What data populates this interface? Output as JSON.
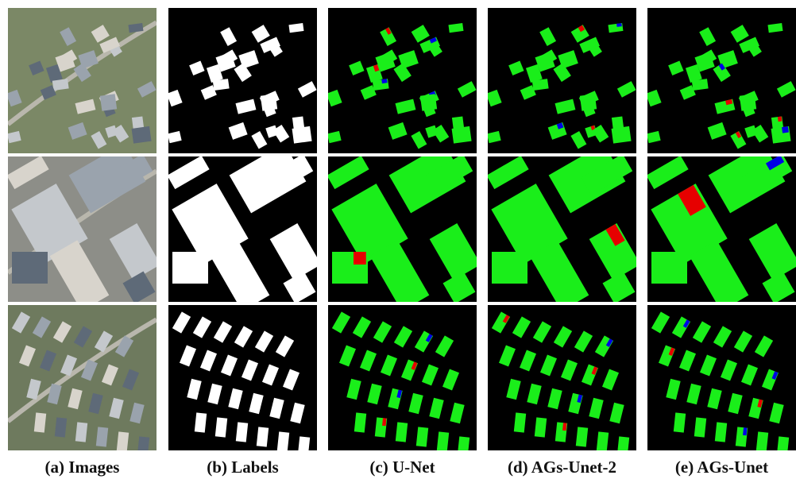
{
  "captions": [
    "(a) Images",
    "(b) Labels",
    "(c) U-Net",
    "(d) AGs-Unet-2",
    "(e) AGs-Unet"
  ]
}
